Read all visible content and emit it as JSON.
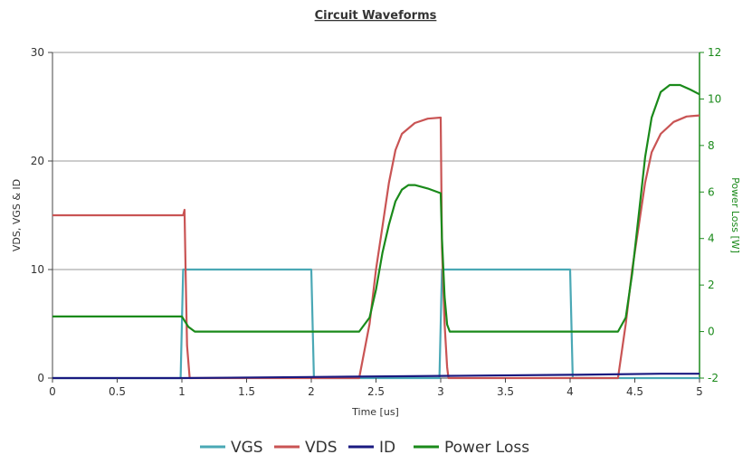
{
  "chart_data": {
    "type": "line",
    "title": "Circuit Waveforms",
    "xlabel": "Time [us]",
    "ylabel": "VDS, VGS & ID",
    "y2label": "Power Loss [W]",
    "xlim": [
      0,
      5
    ],
    "ylim": [
      0,
      30
    ],
    "y2lim": [
      -2,
      12
    ],
    "xticks": [
      "0",
      "0.5",
      "1",
      "1.5",
      "2",
      "2.5",
      "3",
      "3.5",
      "4",
      "4.5",
      "5"
    ],
    "yticks": [
      "0",
      "10",
      "20",
      "30"
    ],
    "y2ticks": [
      "-2",
      "0",
      "2",
      "4",
      "6",
      "8",
      "10",
      "12"
    ],
    "grid": true,
    "legend_position": "bottom",
    "series": [
      {
        "name": "VGS",
        "color": "#4aa8b5",
        "axis": "left",
        "points": [
          [
            0,
            0
          ],
          [
            0.99,
            0
          ],
          [
            1.01,
            10
          ],
          [
            2.0,
            10
          ],
          [
            2.02,
            0
          ],
          [
            2.99,
            0
          ],
          [
            3.01,
            10
          ],
          [
            4.0,
            10
          ],
          [
            4.02,
            0
          ],
          [
            5,
            0
          ]
        ]
      },
      {
        "name": "VDS",
        "color": "#c95454",
        "axis": "left",
        "points": [
          [
            0,
            15
          ],
          [
            1.01,
            15
          ],
          [
            1.02,
            15.5
          ],
          [
            1.03,
            9
          ],
          [
            1.04,
            3
          ],
          [
            1.06,
            0
          ],
          [
            2.37,
            0
          ],
          [
            2.45,
            5
          ],
          [
            2.5,
            10
          ],
          [
            2.55,
            14
          ],
          [
            2.6,
            18
          ],
          [
            2.65,
            21
          ],
          [
            2.7,
            22.5
          ],
          [
            2.8,
            23.5
          ],
          [
            2.9,
            23.9
          ],
          [
            3.0,
            24
          ],
          [
            3.01,
            12
          ],
          [
            3.03,
            5
          ],
          [
            3.05,
            1
          ],
          [
            3.06,
            0
          ],
          [
            4.37,
            0
          ],
          [
            4.43,
            5
          ],
          [
            4.48,
            10
          ],
          [
            4.53,
            14
          ],
          [
            4.58,
            18
          ],
          [
            4.63,
            20.8
          ],
          [
            4.7,
            22.5
          ],
          [
            4.8,
            23.6
          ],
          [
            4.9,
            24.1
          ],
          [
            5.0,
            24.2
          ]
        ]
      },
      {
        "name": "ID",
        "color": "#1a1a80",
        "axis": "left",
        "points": [
          [
            0,
            0
          ],
          [
            1.0,
            0
          ],
          [
            2.0,
            0.1
          ],
          [
            3.0,
            0.2
          ],
          [
            4.0,
            0.3
          ],
          [
            4.7,
            0.4
          ],
          [
            5.0,
            0.4
          ]
        ]
      },
      {
        "name": "Power Loss",
        "color": "#1a8a1a",
        "axis": "right",
        "points": [
          [
            0,
            0.65
          ],
          [
            1.0,
            0.65
          ],
          [
            1.05,
            0.2
          ],
          [
            1.1,
            0
          ],
          [
            2.37,
            0
          ],
          [
            2.45,
            0.6
          ],
          [
            2.5,
            1.8
          ],
          [
            2.55,
            3.4
          ],
          [
            2.6,
            4.6
          ],
          [
            2.65,
            5.6
          ],
          [
            2.7,
            6.1
          ],
          [
            2.75,
            6.3
          ],
          [
            2.8,
            6.3
          ],
          [
            2.9,
            6.15
          ],
          [
            3.0,
            5.95
          ],
          [
            3.01,
            4
          ],
          [
            3.03,
            1.5
          ],
          [
            3.05,
            0.3
          ],
          [
            3.07,
            0
          ],
          [
            4.37,
            0
          ],
          [
            4.43,
            0.6
          ],
          [
            4.48,
            2.5
          ],
          [
            4.53,
            5
          ],
          [
            4.58,
            7.5
          ],
          [
            4.63,
            9.2
          ],
          [
            4.7,
            10.3
          ],
          [
            4.77,
            10.6
          ],
          [
            4.85,
            10.6
          ],
          [
            4.93,
            10.4
          ],
          [
            5.0,
            10.2
          ]
        ]
      }
    ]
  }
}
